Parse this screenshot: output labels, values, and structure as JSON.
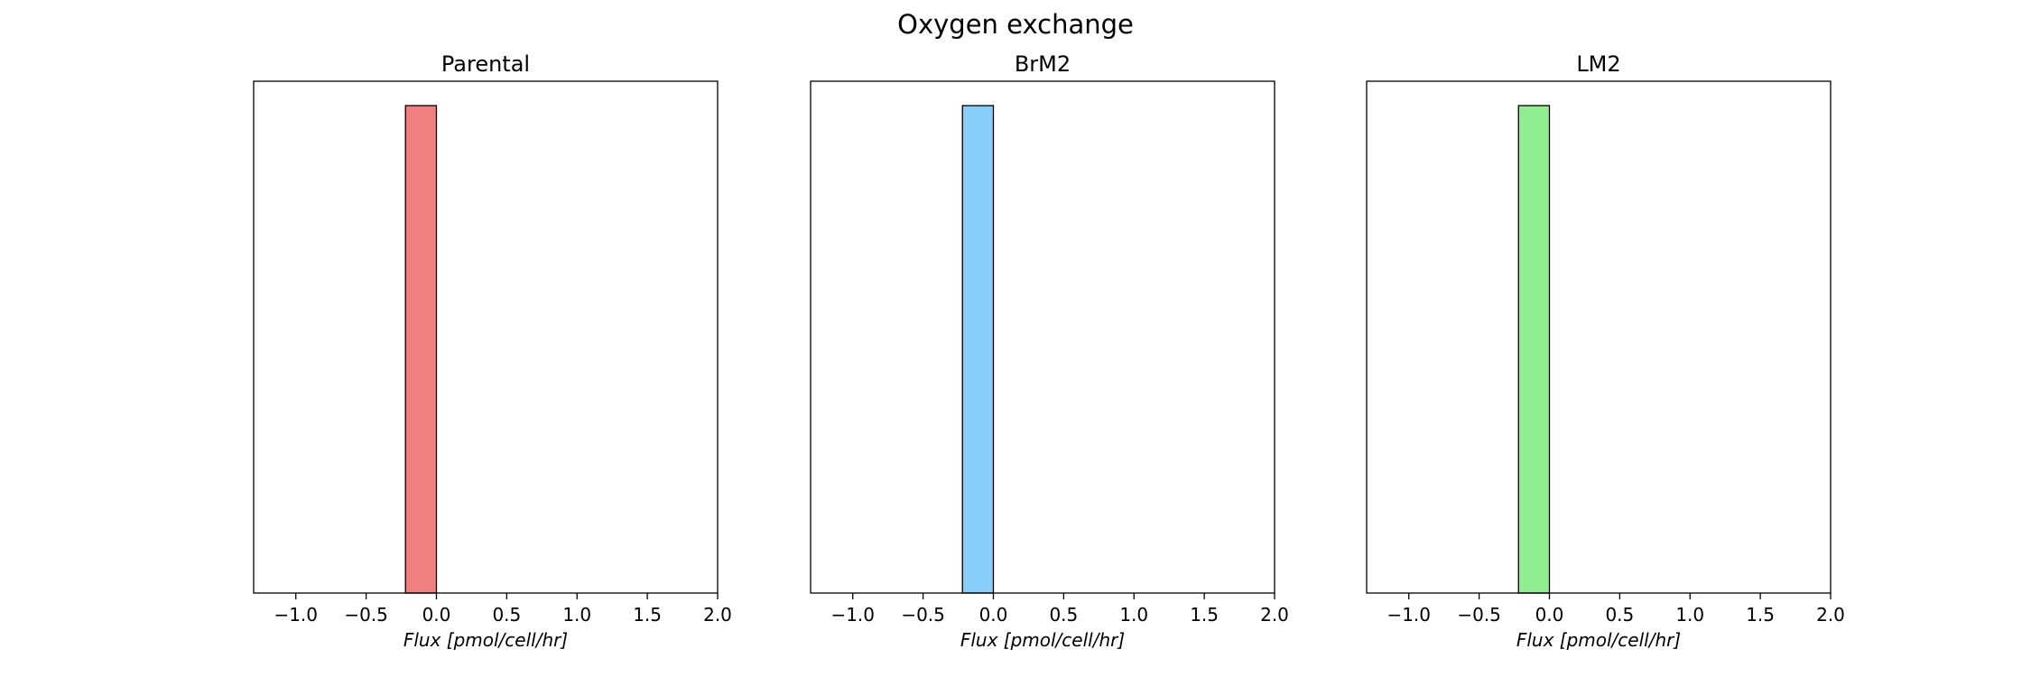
{
  "figure": {
    "title": "Oxygen exchange"
  },
  "chart_data": [
    {
      "type": "bar",
      "title": "Parental",
      "xlabel": "Flux [pmol/cell/hr]",
      "ylabel": "",
      "xlim": [
        -1.3,
        2.0
      ],
      "ylim": [
        0,
        1.05
      ],
      "xticks": [
        -1.0,
        -0.5,
        0.0,
        0.5,
        1.0,
        1.5,
        2.0
      ],
      "xtick_labels": [
        "−1.0",
        "−0.5",
        "0.0",
        "0.5",
        "1.0",
        "1.5",
        "2.0"
      ],
      "yticks_visible": false,
      "bins": [
        {
          "x0": -0.22,
          "x1": 0.0,
          "count": 1
        }
      ],
      "color": "#f08080",
      "edgecolor": "#000000"
    },
    {
      "type": "bar",
      "title": "BrM2",
      "xlabel": "Flux [pmol/cell/hr]",
      "ylabel": "",
      "xlim": [
        -1.3,
        2.0
      ],
      "ylim": [
        0,
        1.05
      ],
      "xticks": [
        -1.0,
        -0.5,
        0.0,
        0.5,
        1.0,
        1.5,
        2.0
      ],
      "xtick_labels": [
        "−1.0",
        "−0.5",
        "0.0",
        "0.5",
        "1.0",
        "1.5",
        "2.0"
      ],
      "yticks_visible": false,
      "bins": [
        {
          "x0": -0.22,
          "x1": 0.0,
          "count": 1
        }
      ],
      "color": "#87cefa",
      "edgecolor": "#000000"
    },
    {
      "type": "bar",
      "title": "LM2",
      "xlabel": "Flux [pmol/cell/hr]",
      "ylabel": "",
      "xlim": [
        -1.3,
        2.0
      ],
      "ylim": [
        0,
        1.05
      ],
      "xticks": [
        -1.0,
        -0.5,
        0.0,
        0.5,
        1.0,
        1.5,
        2.0
      ],
      "xtick_labels": [
        "−1.0",
        "−0.5",
        "0.0",
        "0.5",
        "1.0",
        "1.5",
        "2.0"
      ],
      "yticks_visible": false,
      "bins": [
        {
          "x0": -0.22,
          "x1": 0.0,
          "count": 1
        }
      ],
      "color": "#90ee90",
      "edgecolor": "#000000"
    }
  ]
}
